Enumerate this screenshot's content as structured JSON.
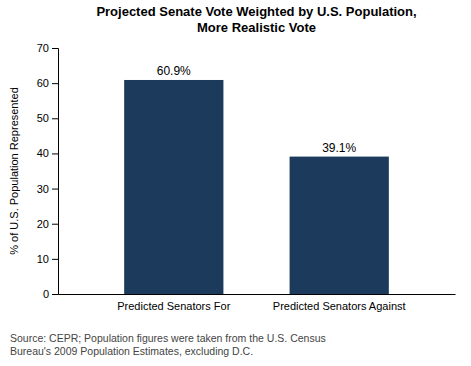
{
  "chart_data": {
    "type": "bar",
    "title": "Projected Senate Vote Weighted by U.S. Population,\nMore Realistic Vote",
    "categories": [
      "Predicted Senators For",
      "Predicted Senators Against"
    ],
    "values": [
      60.9,
      39.1
    ],
    "value_labels": [
      "60.9%",
      "39.1%"
    ],
    "data_labels": true,
    "color": "#1b3a5c",
    "ylabel": "% of U.S. Population Represented",
    "ylim": [
      0,
      70
    ],
    "yticks": [
      0,
      10,
      20,
      30,
      40,
      50,
      60,
      70
    ],
    "grid": false,
    "source": "Source: CEPR; Population figures were taken from the U.S. Census\nBureau's 2009 Population Estimates, excluding D.C."
  }
}
